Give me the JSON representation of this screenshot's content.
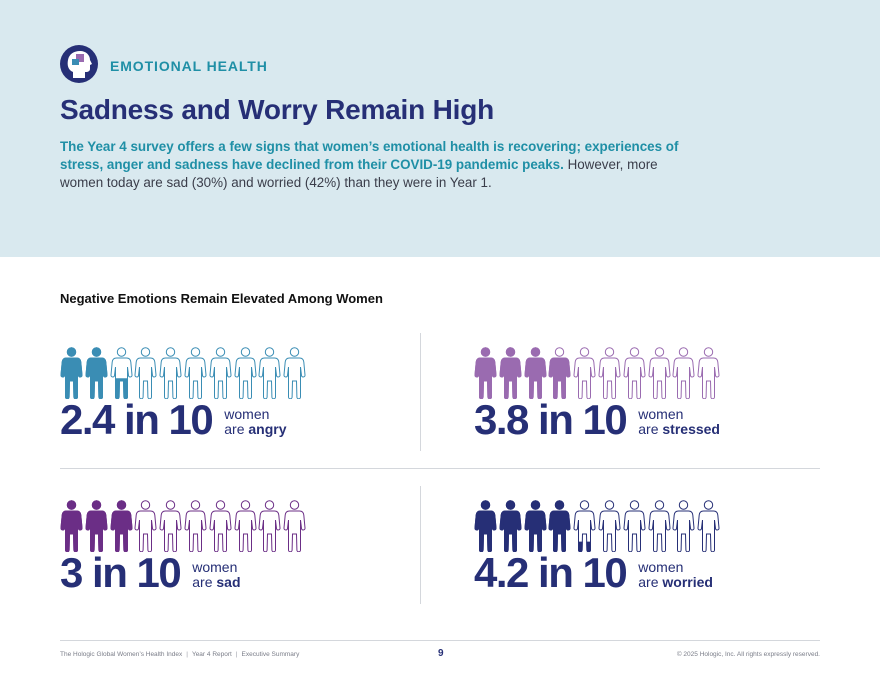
{
  "header": {
    "section_label": "EMOTIONAL HEALTH",
    "logo_icon": "head-profile-icon",
    "title": "Sadness and Worry Remain High",
    "intro_lead": "The Year 4 survey offers a few signs that women’s emotional health is recovering; experiences of stress, anger and sadness have declined from their COVID-19 pandemic peaks.",
    "intro_rest": "However, more women today are sad (30%) and worried (42%) than they were in Year 1."
  },
  "chart_data": {
    "type": "pictograph",
    "title": "Negative Emotions Remain Elevated Among Women",
    "total_icons": 10,
    "series": [
      {
        "name": "angry",
        "value": 2.4,
        "display": "2.4 in 10",
        "label_line1": "women",
        "label_prefix": "are",
        "label_emphasis": "angry",
        "color": "#3a8db4"
      },
      {
        "name": "stressed",
        "value": 3.8,
        "display": "3.8 in 10",
        "label_line1": "women",
        "label_prefix": "are",
        "label_emphasis": "stressed",
        "color": "#9a6bb0"
      },
      {
        "name": "sad",
        "value": 3,
        "display": "3 in 10",
        "label_line1": "women",
        "label_prefix": "are",
        "label_emphasis": "sad",
        "color": "#6b2e86"
      },
      {
        "name": "worried",
        "value": 4.2,
        "display": "4.2 in 10",
        "label_line1": "women",
        "label_prefix": "are",
        "label_emphasis": "worried",
        "color": "#262f76"
      }
    ]
  },
  "footer": {
    "left_parts": [
      "The Hologic Global Women’s Health Index",
      "Year 4 Report",
      "Executive Summary"
    ],
    "page_number": "9",
    "copyright": "© 2025 Hologic, Inc. All rights expressly reserved."
  }
}
